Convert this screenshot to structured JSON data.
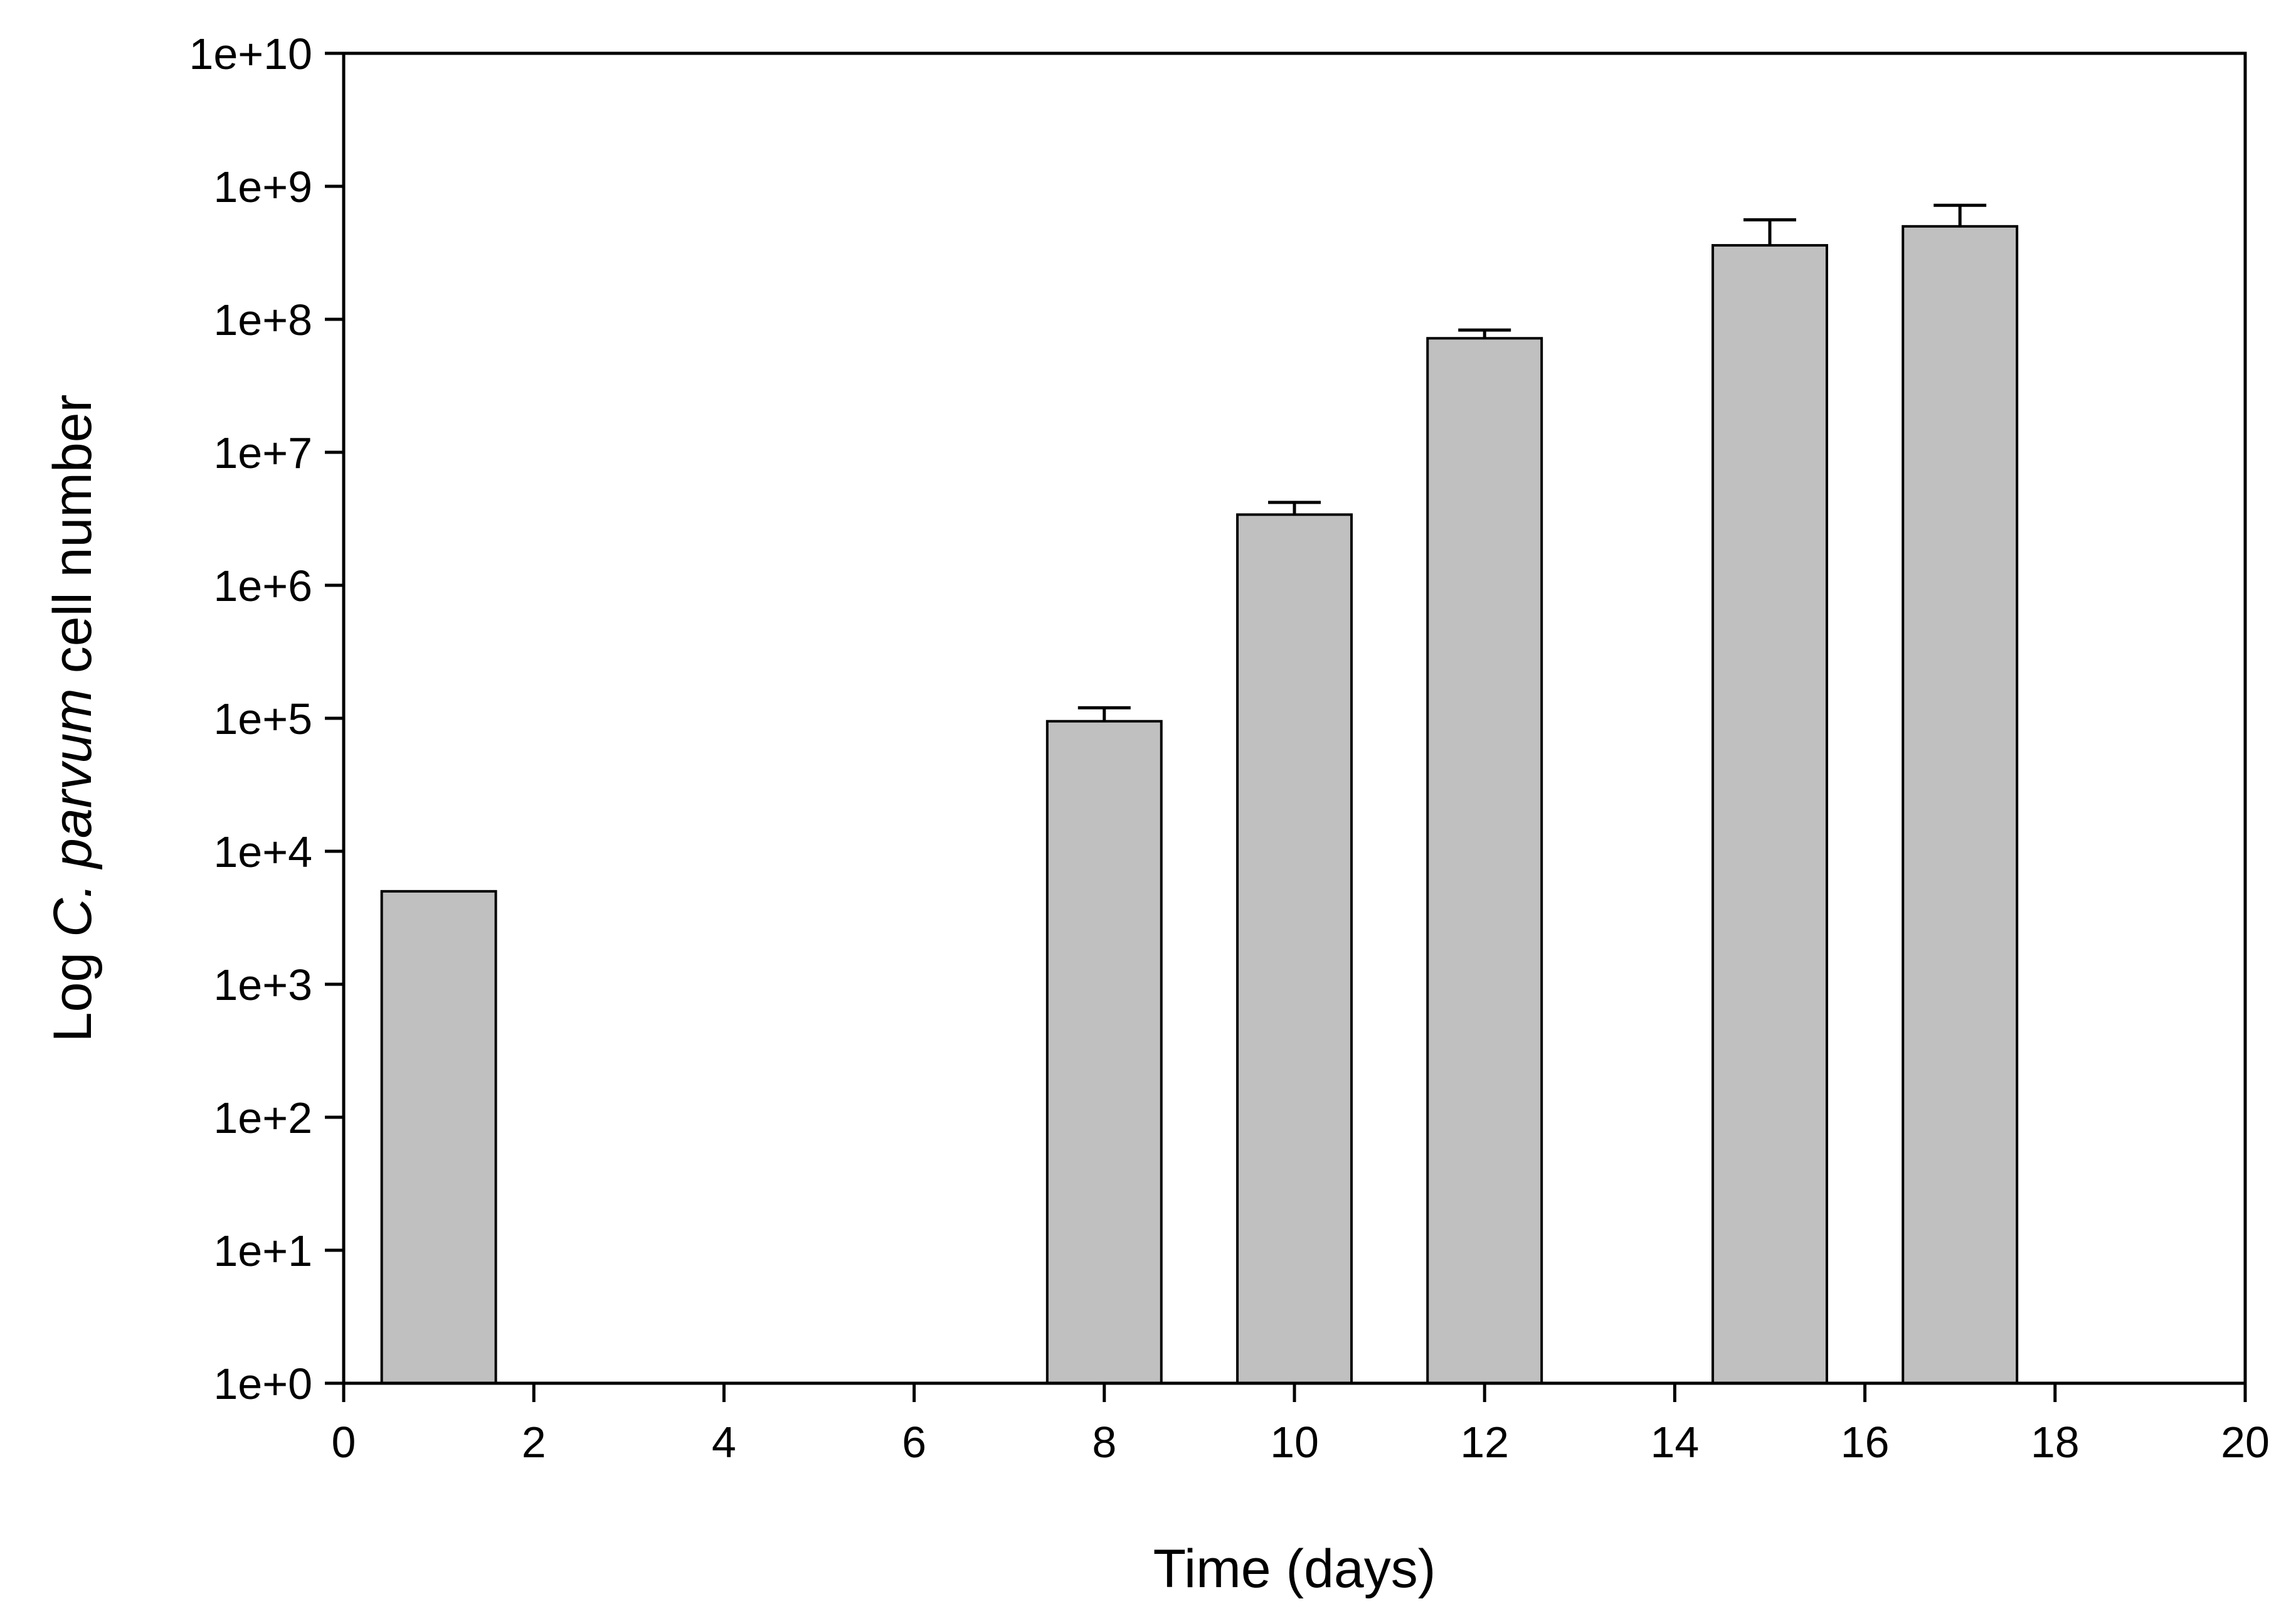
{
  "chart_data": {
    "type": "bar",
    "xlabel": "Time (days)",
    "ylabel": {
      "prefix": "Log ",
      "italic": "C. parvum",
      "suffix": " cell number"
    },
    "xlim": [
      0,
      20
    ],
    "ylim": [
      1,
      10000000000
    ],
    "y_scale": "log",
    "grid": false,
    "x_ticks": [
      0,
      2,
      4,
      6,
      8,
      10,
      12,
      14,
      16,
      18,
      20
    ],
    "y_ticks": [
      1,
      10,
      100,
      1000,
      10000,
      100000,
      1000000,
      10000000,
      100000000,
      1000000000,
      10000000000
    ],
    "x_tick_labels": [
      "0",
      "2",
      "4",
      "6",
      "8",
      "10",
      "12",
      "14",
      "16",
      "18",
      "20"
    ],
    "y_tick_labels": [
      "1e+0",
      "1e+1",
      "1e+2",
      "1e+3",
      "1e+4",
      "1e+5",
      "1e+6",
      "1e+7",
      "1e+8",
      "1e+9",
      "1e+10"
    ],
    "bar_width_days": 1.2,
    "bar_color": "#c0c0c0",
    "bars": [
      {
        "x": 1,
        "value": 5000,
        "error_upper": null
      },
      {
        "x": 8,
        "value": 95000,
        "error_upper": 120000
      },
      {
        "x": 10,
        "value": 3400000,
        "error_upper": 4200000
      },
      {
        "x": 12,
        "value": 72000000,
        "error_upper": 83000000
      },
      {
        "x": 15,
        "value": 360000000,
        "error_upper": 560000000
      },
      {
        "x": 17,
        "value": 500000000,
        "error_upper": 720000000
      }
    ]
  }
}
